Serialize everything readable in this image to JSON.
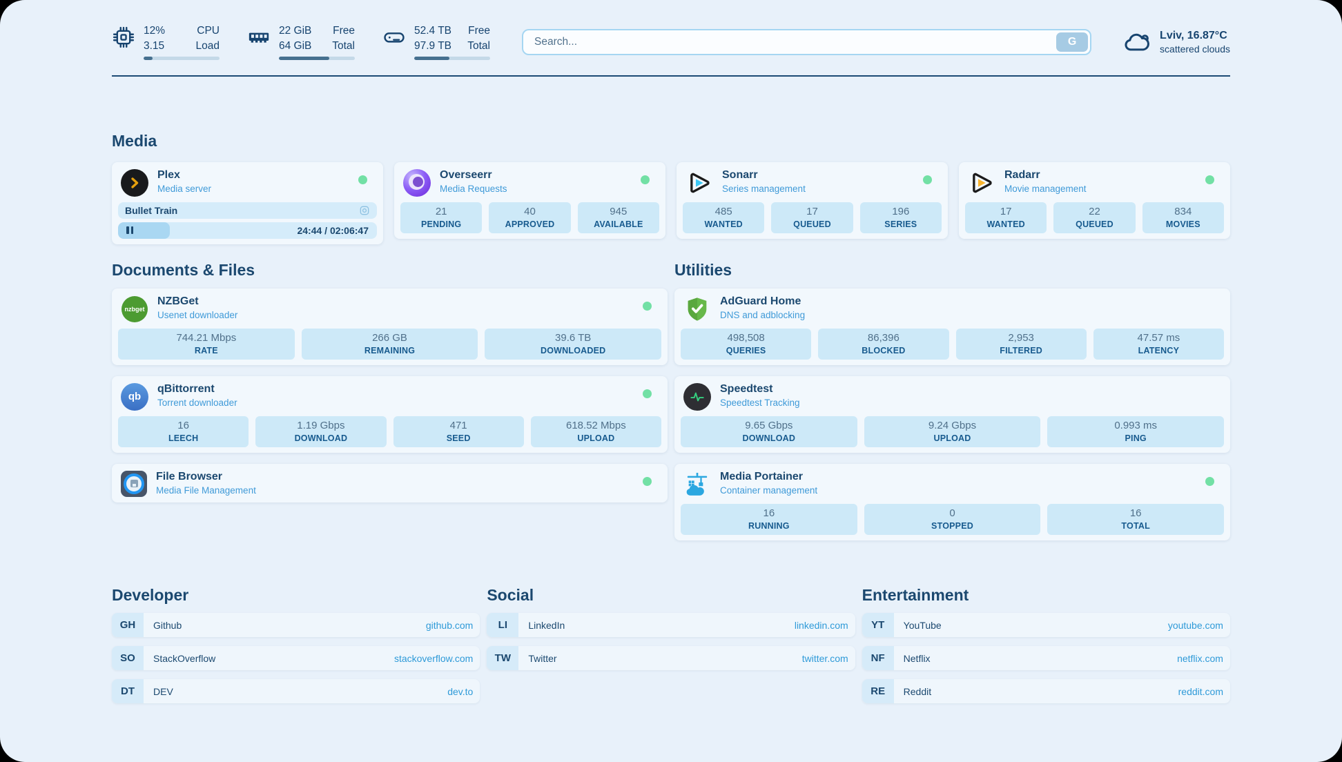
{
  "topbar": {
    "resources": [
      {
        "icon": "cpu-icon",
        "values": [
          "12%",
          "3.15"
        ],
        "labels": [
          "CPU",
          "Load"
        ],
        "progress_pct": 12
      },
      {
        "icon": "memory-icon",
        "values": [
          "22 GiB",
          "64 GiB"
        ],
        "labels": [
          "Free",
          "Total"
        ],
        "progress_pct": 66
      },
      {
        "icon": "disk-icon",
        "values": [
          "52.4 TB",
          "97.9 TB"
        ],
        "labels": [
          "Free",
          "Total"
        ],
        "progress_pct": 46
      }
    ],
    "search": {
      "placeholder": "Search...",
      "button_label": "G"
    },
    "weather": {
      "icon": "cloud-icon",
      "location": "Lviv, 16.87°C",
      "condition": "scattered clouds"
    }
  },
  "sections": {
    "media": {
      "title": "Media",
      "plex": {
        "icon": "plex-icon",
        "name": "Plex",
        "description": "Media server",
        "status": "online",
        "now_playing": {
          "title": "Bullet Train",
          "time_display": "24:44 / 02:06:47",
          "progress_pct": 20
        }
      },
      "overseerr": {
        "icon": "overseerr-icon",
        "name": "Overseerr",
        "description": "Media Requests",
        "status": "online",
        "stats": [
          {
            "value": "21",
            "label": "PENDING"
          },
          {
            "value": "40",
            "label": "APPROVED"
          },
          {
            "value": "945",
            "label": "AVAILABLE"
          }
        ]
      },
      "sonarr": {
        "icon": "sonarr-icon",
        "name": "Sonarr",
        "description": "Series management",
        "status": "online",
        "stats": [
          {
            "value": "485",
            "label": "WANTED"
          },
          {
            "value": "17",
            "label": "QUEUED"
          },
          {
            "value": "196",
            "label": "SERIES"
          }
        ]
      },
      "radarr": {
        "icon": "radarr-icon",
        "name": "Radarr",
        "description": "Movie management",
        "status": "online",
        "stats": [
          {
            "value": "17",
            "label": "WANTED"
          },
          {
            "value": "22",
            "label": "QUEUED"
          },
          {
            "value": "834",
            "label": "MOVIES"
          }
        ]
      }
    },
    "documents": {
      "title": "Documents & Files",
      "nzbget": {
        "icon": "nzbget-icon",
        "icon_text": "nzbget",
        "name": "NZBGet",
        "description": "Usenet downloader",
        "status": "online",
        "stats": [
          {
            "value": "744.21 Mbps",
            "label": "RATE"
          },
          {
            "value": "266 GB",
            "label": "REMAINING"
          },
          {
            "value": "39.6 TB",
            "label": "DOWNLOADED"
          }
        ]
      },
      "qbittorrent": {
        "icon": "qbittorrent-icon",
        "icon_text": "qb",
        "name": "qBittorrent",
        "description": "Torrent downloader",
        "status": "online",
        "stats": [
          {
            "value": "16",
            "label": "LEECH"
          },
          {
            "value": "1.19 Gbps",
            "label": "DOWNLOAD"
          },
          {
            "value": "471",
            "label": "SEED"
          },
          {
            "value": "618.52 Mbps",
            "label": "UPLOAD"
          }
        ]
      },
      "filebrowser": {
        "icon": "filebrowser-icon",
        "name": "File Browser",
        "description": "Media File Management",
        "status": "online"
      }
    },
    "utilities": {
      "title": "Utilities",
      "adguard": {
        "icon": "adguard-icon",
        "name": "AdGuard Home",
        "description": "DNS and adblocking",
        "stats": [
          {
            "value": "498,508",
            "label": "QUERIES"
          },
          {
            "value": "86,396",
            "label": "BLOCKED"
          },
          {
            "value": "2,953",
            "label": "FILTERED"
          },
          {
            "value": "47.57 ms",
            "label": "LATENCY"
          }
        ]
      },
      "speedtest": {
        "icon": "speedtest-icon",
        "name": "Speedtest",
        "description": "Speedtest Tracking",
        "stats": [
          {
            "value": "9.65 Gbps",
            "label": "DOWNLOAD"
          },
          {
            "value": "9.24 Gbps",
            "label": "UPLOAD"
          },
          {
            "value": "0.993 ms",
            "label": "PING"
          }
        ]
      },
      "portainer": {
        "icon": "portainer-icon",
        "name": "Media Portainer",
        "description": "Container management",
        "status": "online",
        "stats": [
          {
            "value": "16",
            "label": "RUNNING"
          },
          {
            "value": "0",
            "label": "STOPPED"
          },
          {
            "value": "16",
            "label": "TOTAL"
          }
        ]
      }
    },
    "bookmarks": {
      "developer": {
        "title": "Developer",
        "items": [
          {
            "abbr": "GH",
            "name": "Github",
            "url": "github.com"
          },
          {
            "abbr": "SO",
            "name": "StackOverflow",
            "url": "stackoverflow.com"
          },
          {
            "abbr": "DT",
            "name": "DEV",
            "url": "dev.to"
          }
        ]
      },
      "social": {
        "title": "Social",
        "items": [
          {
            "abbr": "LI",
            "name": "LinkedIn",
            "url": "linkedin.com"
          },
          {
            "abbr": "TW",
            "name": "Twitter",
            "url": "twitter.com"
          }
        ]
      },
      "entertainment": {
        "title": "Entertainment",
        "items": [
          {
            "abbr": "YT",
            "name": "YouTube",
            "url": "youtube.com"
          },
          {
            "abbr": "NF",
            "name": "Netflix",
            "url": "netflix.com"
          },
          {
            "abbr": "RE",
            "name": "Reddit",
            "url": "reddit.com"
          }
        ]
      }
    }
  },
  "colors": {
    "page_bg": "#e8f1fa",
    "card_bg": "#f2f8fd",
    "stat_bg": "#cde9f8",
    "navy_text": "#1b486f",
    "subtitle_blue": "#3f9ad8",
    "link_blue": "#2e9ad8",
    "status_green": "#72e0a5",
    "plex_gold": "#e5a00d",
    "sonarr_cyan": "#3cc8f5",
    "radarr_gold": "#f9b42d"
  }
}
